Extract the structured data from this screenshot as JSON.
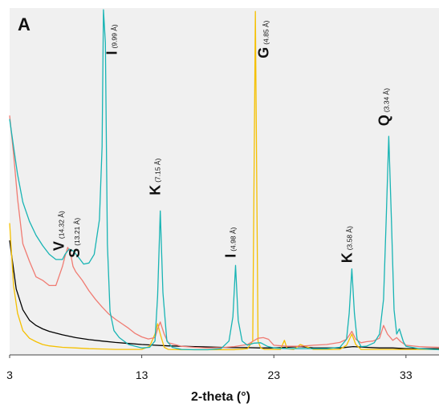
{
  "chart_data": {
    "type": "line",
    "panel_label": "A",
    "xlabel": "2-theta (°)",
    "ylabel": "",
    "xlim": [
      3,
      35.5
    ],
    "ylim": [
      0,
      1000
    ],
    "xticks": [
      3,
      13,
      23,
      33
    ],
    "tick_labels": [
      "3",
      "13",
      "23",
      "33"
    ],
    "background": "#f0f0f0",
    "grid": false,
    "legend": "none",
    "series": [
      {
        "color": "#000000",
        "x": [
          3,
          3.5,
          4,
          4.5,
          5,
          5.5,
          6,
          7,
          8,
          9,
          10,
          11,
          12,
          13,
          14,
          15,
          16,
          17,
          18,
          19,
          20,
          21,
          22,
          23,
          24,
          25,
          26,
          27,
          28,
          29,
          30,
          31,
          32,
          33,
          34,
          35.5
        ],
        "y": [
          330,
          190,
          130,
          100,
          85,
          75,
          68,
          58,
          50,
          44,
          40,
          36,
          33,
          30,
          28,
          26,
          25,
          24,
          23,
          22,
          21,
          21,
          20,
          20,
          22,
          24,
          20,
          20,
          20,
          24,
          22,
          20,
          20,
          18,
          18,
          18
        ]
      },
      {
        "color": "#f5c000",
        "x": [
          3,
          3.3,
          3.6,
          4,
          4.5,
          5,
          5.5,
          6,
          7,
          8,
          9,
          10,
          11,
          12,
          13,
          13.6,
          14,
          14.2,
          14.4,
          14.7,
          15,
          16,
          17,
          18,
          19,
          20,
          21,
          21.4,
          21.6,
          21.8,
          22.0,
          22.3,
          22.6,
          23,
          23.5,
          23.8,
          24,
          24.5,
          25,
          26,
          27,
          28,
          28.5,
          28.9,
          29.2,
          29.6,
          30,
          31,
          32,
          33,
          34,
          35.5
        ],
        "y": [
          380,
          200,
          120,
          70,
          48,
          38,
          30,
          26,
          22,
          20,
          18,
          17,
          16,
          16,
          16,
          25,
          60,
          90,
          60,
          22,
          16,
          15,
          15,
          15,
          15,
          15,
          18,
          40,
          990,
          40,
          20,
          16,
          16,
          16,
          16,
          42,
          18,
          16,
          30,
          16,
          16,
          16,
          28,
          60,
          30,
          16,
          16,
          16,
          16,
          16,
          16,
          16
        ]
      },
      {
        "color": "#f07b72",
        "x": [
          3,
          3.3,
          3.6,
          4,
          4.5,
          5,
          5.5,
          6,
          6.5,
          7,
          7.2,
          7.4,
          7.6,
          7.8,
          8,
          8.5,
          9,
          9.5,
          10,
          10.5,
          11,
          11.5,
          12,
          12.5,
          13,
          13.5,
          14,
          14.2,
          14.4,
          14.7,
          15,
          16,
          17,
          18,
          19,
          20,
          21,
          21.8,
          22.2,
          22.6,
          23,
          24,
          25,
          26,
          27,
          28,
          28.5,
          28.9,
          29.2,
          29.6,
          30,
          30.5,
          31,
          31.3,
          31.6,
          32,
          32.3,
          32.6,
          33,
          34,
          35.5
        ],
        "y": [
          690,
          580,
          450,
          320,
          270,
          225,
          215,
          200,
          200,
          255,
          285,
          310,
          295,
          255,
          240,
          215,
          185,
          160,
          138,
          118,
          103,
          90,
          77,
          62,
          52,
          46,
          50,
          75,
          95,
          60,
          35,
          25,
          22,
          20,
          21,
          24,
          30,
          48,
          50,
          45,
          28,
          25,
          25,
          28,
          30,
          36,
          45,
          68,
          45,
          35,
          38,
          40,
          48,
          85,
          60,
          42,
          50,
          38,
          28,
          24,
          22
        ]
      },
      {
        "color": "#18b4b4",
        "x": [
          3,
          3.3,
          3.6,
          4,
          4.5,
          5,
          5.5,
          6,
          6.5,
          7,
          7.2,
          7.5,
          7.8,
          8.2,
          8.6,
          9,
          9.4,
          9.8,
          10.0,
          10.1,
          10.25,
          10.4,
          10.6,
          10.9,
          11.3,
          12,
          13,
          13.6,
          14,
          14.2,
          14.4,
          14.6,
          14.9,
          15.3,
          16,
          17,
          18,
          19,
          19.6,
          19.9,
          20.1,
          20.3,
          20.6,
          21,
          21.5,
          22,
          22.5,
          23,
          24,
          25,
          26,
          27,
          28,
          28.5,
          28.7,
          28.9,
          29.1,
          29.3,
          29.6,
          30,
          30.6,
          31,
          31.3,
          31.5,
          31.7,
          31.9,
          32.1,
          32.3,
          32.5,
          32.8,
          33,
          34,
          35.5
        ],
        "y": [
          680,
          600,
          520,
          440,
          385,
          345,
          315,
          290,
          275,
          275,
          290,
          305,
          300,
          282,
          262,
          265,
          290,
          390,
          600,
          995,
          900,
          320,
          125,
          70,
          50,
          30,
          20,
          22,
          40,
          170,
          415,
          180,
          40,
          22,
          16,
          15,
          15,
          18,
          40,
          110,
          258,
          100,
          40,
          28,
          34,
          35,
          25,
          20,
          18,
          18,
          18,
          18,
          22,
          45,
          120,
          248,
          120,
          45,
          24,
          25,
          35,
          60,
          160,
          390,
          630,
          390,
          130,
          60,
          75,
          38,
          25,
          18,
          15
        ]
      }
    ],
    "annotations": [
      {
        "letter": "V",
        "d": "(14.32 Å)",
        "x": 7.1,
        "y": 300
      },
      {
        "letter": "S",
        "d": "(13.21 Å)",
        "x": 8.3,
        "y": 280
      },
      {
        "letter": "I",
        "d": "(9.99 Å)",
        "x": 11.1,
        "y": 865
      },
      {
        "letter": "K",
        "d": "(7.15 Å)",
        "x": 14.4,
        "y": 460
      },
      {
        "letter": "I",
        "d": "(4.98 Å)",
        "x": 20.1,
        "y": 280
      },
      {
        "letter": "G",
        "d": "(4.85 Å)",
        "x": 22.6,
        "y": 855
      },
      {
        "letter": "K",
        "d": "(3.58 Å)",
        "x": 28.9,
        "y": 265
      },
      {
        "letter": "Q",
        "d": "(3.34 Å)",
        "x": 31.7,
        "y": 660
      }
    ]
  }
}
